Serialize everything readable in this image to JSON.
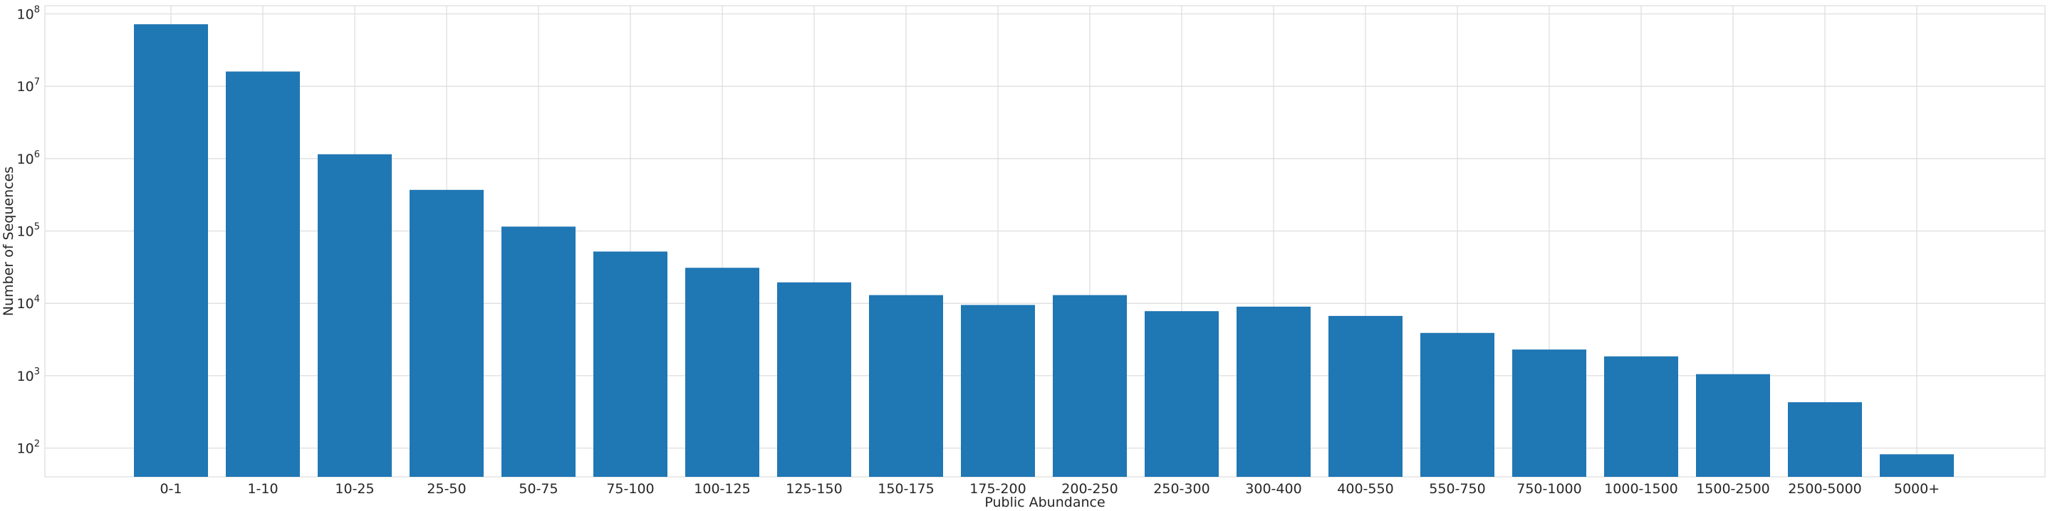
{
  "chart_data": {
    "type": "bar",
    "title": "",
    "xlabel": "Public Abundance",
    "ylabel": "Number of Sequences",
    "yscale": "log",
    "ylim": [
      40,
      130000000
    ],
    "ytick_exponents": [
      2,
      3,
      4,
      5,
      6,
      7,
      8
    ],
    "grid": true,
    "bar_color": "#1f77b4",
    "categories": [
      "0-1",
      "1-10",
      "10-25",
      "25-50",
      "50-75",
      "75-100",
      "100-125",
      "125-150",
      "150-175",
      "175-200",
      "200-250",
      "250-300",
      "300-400",
      "400-550",
      "550-750",
      "750-1000",
      "1000-1500",
      "1500-2500",
      "2500-5000",
      "5000+"
    ],
    "values": [
      72000000,
      16000000,
      1150000,
      370000,
      115000,
      52000,
      31000,
      19500,
      13000,
      9500,
      13000,
      7800,
      9000,
      6700,
      3900,
      2300,
      1850,
      1050,
      430,
      82
    ]
  }
}
